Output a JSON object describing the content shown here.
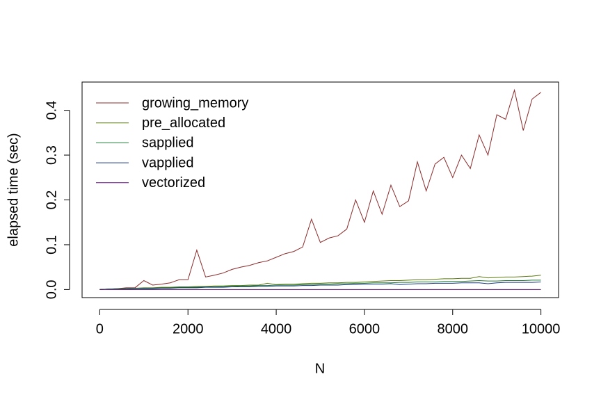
{
  "chart_data": {
    "type": "line",
    "x_label": "N",
    "y_label": "elapsed time (sec)",
    "x": [
      0,
      200,
      400,
      600,
      800,
      1000,
      1200,
      1400,
      1600,
      1800,
      2000,
      2200,
      2400,
      2600,
      2800,
      3000,
      3200,
      3400,
      3600,
      3800,
      4000,
      4200,
      4400,
      4600,
      4800,
      5000,
      5200,
      5400,
      5600,
      5800,
      6000,
      6200,
      6400,
      6600,
      6800,
      7000,
      7200,
      7400,
      7600,
      7800,
      8000,
      8200,
      8400,
      8600,
      8800,
      9000,
      9200,
      9400,
      9600,
      9800,
      10000
    ],
    "series": [
      {
        "name": "growing_memory",
        "color": "#8b2a2a",
        "values": [
          0,
          0.001,
          0.002,
          0.004,
          0.004,
          0.02,
          0.01,
          0.012,
          0.015,
          0.022,
          0.022,
          0.088,
          0.028,
          0.032,
          0.037,
          0.045,
          0.05,
          0.054,
          0.06,
          0.064,
          0.072,
          0.08,
          0.085,
          0.095,
          0.157,
          0.105,
          0.115,
          0.12,
          0.135,
          0.2,
          0.15,
          0.22,
          0.168,
          0.233,
          0.185,
          0.198,
          0.285,
          0.22,
          0.28,
          0.295,
          0.25,
          0.3,
          0.27,
          0.345,
          0.3,
          0.39,
          0.38,
          0.445,
          0.355,
          0.425,
          0.44
        ]
      },
      {
        "name": "pre_allocated",
        "color": "#5a7a10",
        "values": [
          0,
          0.001,
          0.002,
          0.002,
          0.003,
          0.004,
          0.004,
          0.005,
          0.005,
          0.006,
          0.006,
          0.007,
          0.007,
          0.008,
          0.008,
          0.009,
          0.009,
          0.01,
          0.01,
          0.014,
          0.011,
          0.012,
          0.012,
          0.013,
          0.014,
          0.014,
          0.015,
          0.015,
          0.016,
          0.016,
          0.017,
          0.018,
          0.019,
          0.02,
          0.02,
          0.021,
          0.022,
          0.022,
          0.023,
          0.024,
          0.024,
          0.025,
          0.025,
          0.029,
          0.026,
          0.027,
          0.028,
          0.028,
          0.029,
          0.03,
          0.032
        ]
      },
      {
        "name": "sapplied",
        "color": "#1e7a34",
        "values": [
          0,
          0.001,
          0.001,
          0.002,
          0.002,
          0.003,
          0.003,
          0.004,
          0.004,
          0.005,
          0.005,
          0.005,
          0.006,
          0.006,
          0.007,
          0.007,
          0.008,
          0.008,
          0.009,
          0.009,
          0.01,
          0.01,
          0.01,
          0.011,
          0.011,
          0.012,
          0.012,
          0.013,
          0.013,
          0.014,
          0.014,
          0.015,
          0.015,
          0.015,
          0.016,
          0.016,
          0.017,
          0.017,
          0.017,
          0.018,
          0.018,
          0.018,
          0.019,
          0.02,
          0.019,
          0.019,
          0.02,
          0.02,
          0.02,
          0.021,
          0.021
        ]
      },
      {
        "name": "vapplied",
        "color": "#1a3a80",
        "values": [
          0,
          0.001,
          0.001,
          0.001,
          0.002,
          0.002,
          0.002,
          0.003,
          0.003,
          0.004,
          0.004,
          0.004,
          0.005,
          0.005,
          0.005,
          0.006,
          0.006,
          0.006,
          0.007,
          0.007,
          0.008,
          0.008,
          0.008,
          0.009,
          0.009,
          0.01,
          0.01,
          0.01,
          0.011,
          0.011,
          0.012,
          0.012,
          0.012,
          0.013,
          0.011,
          0.012,
          0.013,
          0.013,
          0.014,
          0.014,
          0.014,
          0.015,
          0.015,
          0.015,
          0.013,
          0.015,
          0.016,
          0.016,
          0.016,
          0.016,
          0.017
        ]
      },
      {
        "name": "vectorized",
        "color": "#5a1070",
        "values": [
          0,
          0,
          0,
          0,
          0,
          0,
          0,
          0,
          0,
          0,
          0,
          0,
          0,
          0,
          0,
          0,
          0,
          0,
          0,
          0,
          0,
          0,
          0,
          0,
          0,
          0,
          0,
          0,
          0,
          0,
          0,
          0,
          0,
          0,
          0,
          0,
          0,
          0,
          0,
          0,
          0,
          0,
          0,
          0,
          0,
          0,
          0,
          0,
          0,
          0,
          0
        ]
      }
    ],
    "xlim": [
      -400,
      10400
    ],
    "xticks": [
      0,
      2000,
      4000,
      6000,
      8000,
      10000
    ],
    "ylim": [
      -0.018,
      0.463
    ],
    "yticks": [
      {
        "value": 0,
        "label": "0.0"
      },
      0.1,
      0.2,
      0.3,
      0.4
    ],
    "legend": "top-left"
  }
}
